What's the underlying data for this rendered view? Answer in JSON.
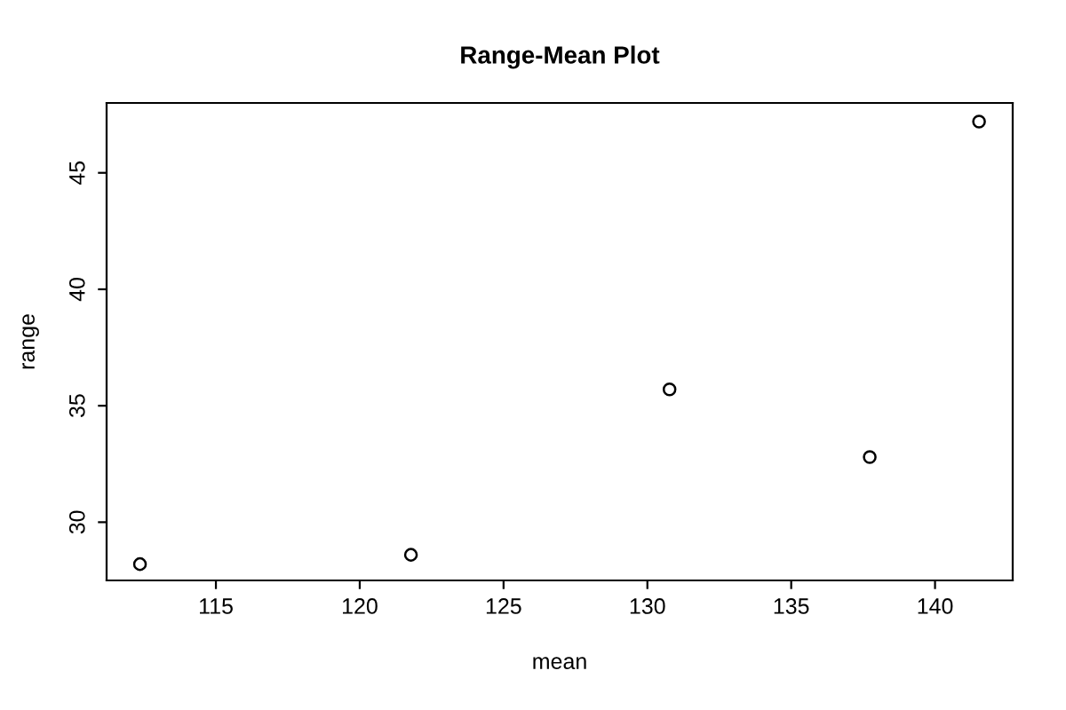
{
  "chart_data": {
    "type": "scatter",
    "title": "Range-Mean Plot",
    "xlabel": "mean",
    "ylabel": "range",
    "x": [
      112.36,
      121.78,
      130.77,
      137.73,
      141.53
    ],
    "values": [
      28.2,
      28.6,
      35.7,
      32.8,
      47.2
    ],
    "color": "#000000",
    "marker": "circle",
    "xlim": [
      111.2,
      142.7
    ],
    "ylim": [
      27.5,
      48.0
    ],
    "xticks": [
      115,
      120,
      125,
      130,
      135,
      140
    ],
    "yticks": [
      30,
      35,
      40,
      45
    ],
    "grid": false,
    "legend": false
  }
}
